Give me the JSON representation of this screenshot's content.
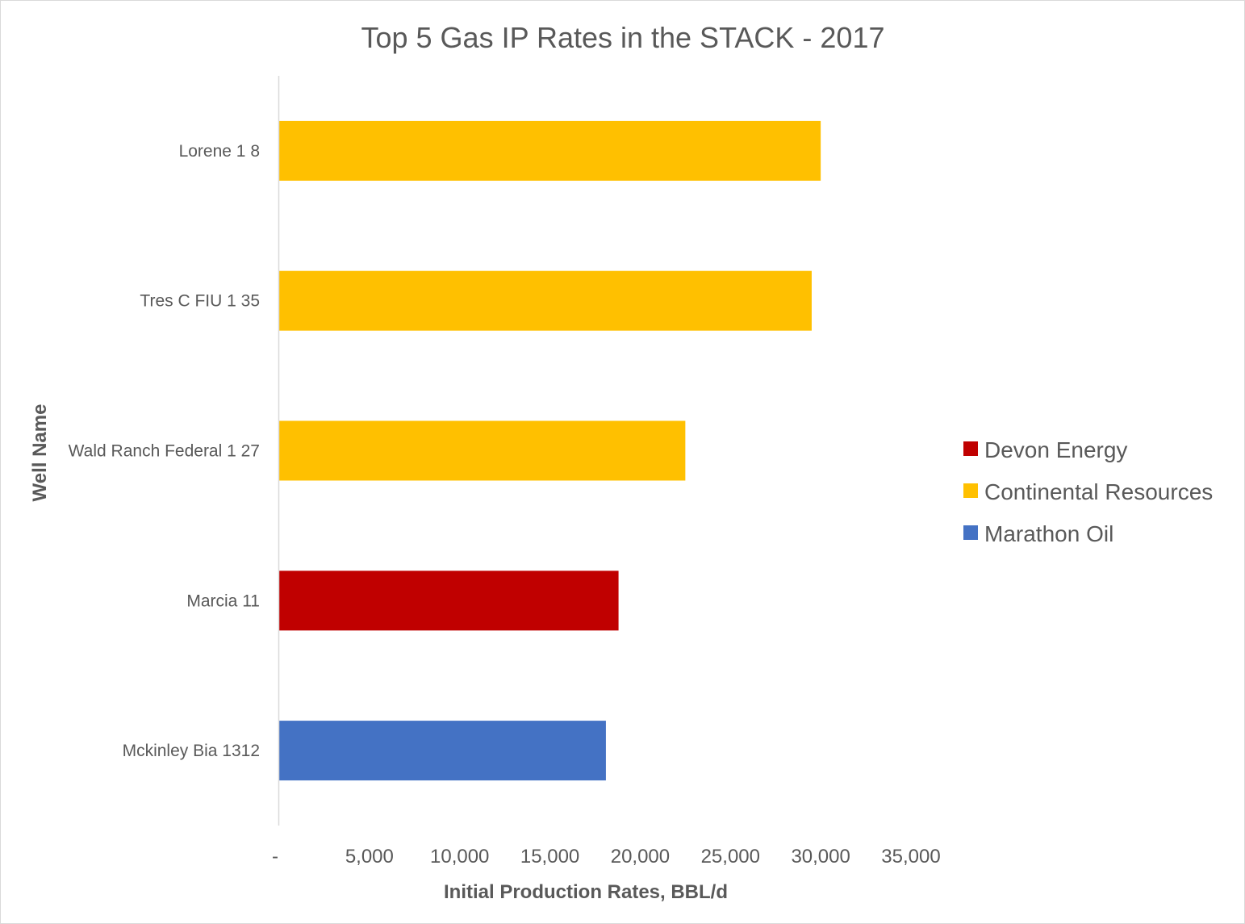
{
  "chart_data": {
    "type": "bar",
    "orientation": "horizontal",
    "title": "Top 5 Gas IP Rates in the STACK - 2017",
    "xlabel": "Initial Production Rates, BBL/d",
    "ylabel": "Well Name",
    "xlim": [
      0,
      35000
    ],
    "x_ticks": [
      0,
      5000,
      10000,
      15000,
      20000,
      25000,
      30000,
      35000
    ],
    "x_tick_labels": [
      "-",
      "5,000",
      "10,000",
      "15,000",
      "20,000",
      "25,000",
      "30,000",
      "35,000"
    ],
    "grid": false,
    "legend_position": "right",
    "categories": [
      "Lorene 1 8",
      "Tres C FIU 1 35",
      "Wald Ranch Federal 1 27",
      "Marcia 11",
      "Mckinley Bia 1312"
    ],
    "values": [
      30000,
      29500,
      22500,
      18800,
      18100
    ],
    "bar_series": [
      "Continental Resources",
      "Continental Resources",
      "Continental Resources",
      "Devon Energy",
      "Marathon Oil"
    ],
    "series": [
      {
        "name": "Devon Energy",
        "color": "#c00000"
      },
      {
        "name": "Continental Resources",
        "color": "#ffc000"
      },
      {
        "name": "Marathon Oil",
        "color": "#4472c4"
      }
    ]
  }
}
